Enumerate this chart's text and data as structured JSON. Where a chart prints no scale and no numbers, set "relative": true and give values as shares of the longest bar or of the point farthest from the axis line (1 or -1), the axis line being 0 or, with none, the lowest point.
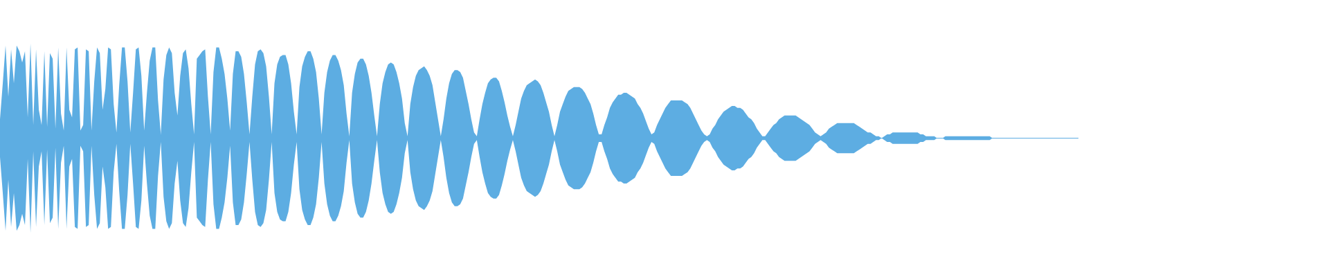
{
  "chart_data": {
    "type": "area",
    "relative": true,
    "ref_lines": [
      {
        "axis": "y",
        "value": 0,
        "color": "#5dade2"
      }
    ],
    "categories": [
      null,
      null,
      null,
      null,
      null,
      null,
      null,
      null,
      null,
      null,
      null,
      null,
      null,
      null,
      null,
      null,
      null,
      null,
      null,
      null,
      null,
      null,
      null,
      null,
      null,
      null,
      null,
      null,
      null,
      null,
      null,
      null,
      null,
      null,
      null,
      null,
      null,
      null,
      null,
      null,
      null,
      null,
      null,
      null,
      null,
      null,
      null,
      null,
      null,
      null,
      null,
      null,
      null,
      null,
      null,
      null,
      null,
      null,
      null,
      null,
      null,
      null,
      null,
      null,
      null,
      null,
      null,
      null,
      null,
      null,
      null,
      null,
      null,
      null,
      null,
      null,
      null,
      null,
      null,
      null,
      null,
      null,
      null,
      null,
      null,
      null,
      null,
      null,
      null,
      null,
      null,
      null,
      null,
      null,
      null,
      null,
      null,
      null,
      null,
      null,
      null,
      null,
      null,
      null,
      null,
      null,
      null,
      null,
      null,
      null,
      null,
      null,
      null,
      null,
      null,
      null,
      null,
      null,
      null,
      null,
      null,
      null,
      null,
      null,
      null,
      null,
      null,
      null,
      null,
      null,
      null,
      null,
      null,
      null,
      null,
      null,
      null,
      null,
      null,
      null,
      null,
      null,
      null,
      null,
      null,
      null,
      null,
      null,
      null,
      null,
      null,
      null,
      null,
      null,
      null,
      null,
      null,
      null,
      null,
      null,
      null,
      null,
      null,
      null,
      null,
      null,
      null,
      null,
      null,
      null,
      null,
      null,
      null,
      null,
      null,
      null,
      null,
      null,
      null,
      null,
      null,
      null,
      null,
      null,
      null,
      null,
      null,
      null,
      null,
      null,
      null,
      null,
      null,
      null,
      null,
      null,
      null,
      null,
      null,
      null,
      null,
      null,
      null,
      null,
      null,
      null,
      null,
      null,
      null,
      null,
      null,
      null,
      null,
      null,
      null,
      null,
      null,
      null,
      null,
      null,
      null,
      null,
      null,
      null,
      null,
      null,
      null,
      null,
      null,
      null,
      null,
      null,
      null,
      null,
      null,
      null,
      null,
      null,
      null,
      null,
      null,
      null,
      null,
      null,
      null,
      null,
      null,
      null,
      null,
      null,
      null,
      null,
      null,
      null,
      null,
      null,
      null,
      null,
      null,
      null,
      null,
      null,
      null,
      null,
      null,
      null,
      null,
      null,
      null,
      null,
      null,
      null,
      null,
      null,
      null,
      null,
      null,
      null,
      null,
      null,
      null,
      null,
      null,
      null,
      null,
      null,
      null,
      null,
      null,
      null,
      null,
      null,
      null,
      null,
      null,
      null,
      null,
      null,
      null,
      null,
      null,
      null,
      null,
      null,
      null,
      null,
      null,
      null,
      null,
      null,
      null,
      null,
      null,
      null,
      null,
      null,
      null,
      null,
      null,
      null,
      null,
      null,
      null,
      null,
      null,
      null,
      null,
      null,
      null,
      null,
      null,
      null,
      null,
      null,
      null,
      null,
      null,
      null,
      null,
      null,
      null,
      null,
      null,
      null,
      null,
      null,
      null,
      null,
      null,
      null,
      null,
      null,
      null,
      null,
      null,
      null,
      null,
      null,
      null,
      null,
      null,
      null,
      null,
      null,
      null,
      null,
      null,
      null,
      null,
      null,
      null,
      null,
      null,
      null,
      null,
      null,
      null,
      null,
      null,
      null,
      null,
      null,
      null,
      null,
      null,
      null,
      null,
      null,
      null,
      null
    ],
    "series": [
      {
        "color": "#5dade2",
        "values": [
          0.2,
          0.58,
          0.98,
          0.44,
          0.94,
          0.58,
          0.98,
          0.92,
          0.8,
          0.92,
          0.22,
          1,
          0.14,
          0.94,
          0.3,
          0.14,
          0.92,
          0.12,
          0.9,
          0.84,
          0.1,
          0.96,
          0.26,
          0.08,
          0.96,
          0.3,
          0.22,
          0.94,
          0.96,
          0.08,
          0.14,
          0.94,
          0.92,
          0.08,
          0.6,
          0.96,
          0.9,
          0.3,
          0.52,
          0.96,
          0.94,
          0.36,
          0.06,
          0.56,
          0.96,
          0.96,
          0.6,
          0.06,
          0.48,
          0.94,
          0.96,
          0.66,
          0.08,
          0.48,
          0.82,
          0.96,
          0.96,
          0.4,
          0.04,
          0.62,
          0.88,
          0.96,
          0.9,
          0.48,
          0.24,
          0.66,
          0.9,
          0.94,
          0.74,
          0.36,
          0.04,
          0.84,
          0.88,
          0.92,
          0.94,
          0.44,
          0.04,
          0.7,
          0.96,
          0.96,
          0.84,
          0.68,
          0.42,
          0.08,
          0.68,
          0.92,
          0.92,
          0.86,
          0.68,
          0.38,
          0.04,
          0.44,
          0.78,
          0.92,
          0.94,
          0.9,
          0.76,
          0.44,
          0.04,
          0.58,
          0.78,
          0.86,
          0.88,
          0.88,
          0.78,
          0.58,
          0.28,
          0.04,
          0.54,
          0.76,
          0.86,
          0.92,
          0.92,
          0.84,
          0.7,
          0.42,
          0.04,
          0.48,
          0.7,
          0.82,
          0.88,
          0.88,
          0.82,
          0.72,
          0.56,
          0.26,
          0.02,
          0.48,
          0.68,
          0.8,
          0.84,
          0.84,
          0.78,
          0.66,
          0.48,
          0.24,
          0.02,
          0.36,
          0.58,
          0.7,
          0.78,
          0.8,
          0.78,
          0.7,
          0.58,
          0.42,
          0.16,
          0.02,
          0.36,
          0.54,
          0.66,
          0.72,
          0.74,
          0.76,
          0.72,
          0.66,
          0.56,
          0.38,
          0.2,
          0.02,
          0.2,
          0.42,
          0.58,
          0.68,
          0.72,
          0.72,
          0.7,
          0.64,
          0.5,
          0.36,
          0.2,
          0.06,
          0.02,
          0.2,
          0.36,
          0.48,
          0.58,
          0.62,
          0.64,
          0.64,
          0.6,
          0.5,
          0.38,
          0.24,
          0.12,
          0.02,
          0.14,
          0.28,
          0.42,
          0.5,
          0.56,
          0.58,
          0.6,
          0.62,
          0.6,
          0.56,
          0.48,
          0.38,
          0.28,
          0.14,
          0.02,
          0.14,
          0.28,
          0.36,
          0.44,
          0.5,
          0.52,
          0.54,
          0.54,
          0.54,
          0.52,
          0.48,
          0.42,
          0.36,
          0.26,
          0.14,
          0.04,
          0.04,
          0.14,
          0.22,
          0.32,
          0.38,
          0.42,
          0.46,
          0.46,
          0.48,
          0.48,
          0.46,
          0.44,
          0.42,
          0.36,
          0.32,
          0.26,
          0.18,
          0.1,
          0.04,
          0.06,
          0.14,
          0.2,
          0.26,
          0.32,
          0.36,
          0.4,
          0.4,
          0.4,
          0.4,
          0.4,
          0.38,
          0.36,
          0.32,
          0.26,
          0.2,
          0.14,
          0.08,
          0.04,
          0.02,
          0.04,
          0.1,
          0.14,
          0.2,
          0.24,
          0.28,
          0.3,
          0.32,
          0.34,
          0.34,
          0.32,
          0.32,
          0.3,
          0.26,
          0.22,
          0.2,
          0.16,
          0.1,
          0.06,
          0.02,
          0.02,
          0.06,
          0.1,
          0.14,
          0.16,
          0.2,
          0.22,
          0.24,
          0.24,
          0.24,
          0.24,
          0.24,
          0.22,
          0.2,
          0.18,
          0.16,
          0.14,
          0.1,
          0.06,
          0.04,
          0.02,
          0.04,
          0.06,
          0.1,
          0.12,
          0.14,
          0.16,
          0.16,
          0.16,
          0.16,
          0.16,
          0.16,
          0.16,
          0.14,
          0.12,
          0.1,
          0.08,
          0.06,
          0.06,
          0.04,
          0.02,
          0.02,
          0,
          0.02,
          0.04,
          0.04,
          0.06,
          0.06,
          0.06,
          0.06,
          0.06,
          0.06,
          0.06,
          0.06,
          0.06,
          0.06,
          0.04,
          0.04,
          0.02,
          0.02,
          0.02,
          0.02,
          0,
          0,
          0,
          0.02,
          0.02,
          0.02,
          0.02,
          0.02,
          0.02,
          0.02,
          0.02,
          0.02,
          0.02,
          0.02,
          0.02,
          0.02,
          0.02,
          0.02,
          0.02,
          0.02,
          0,
          0,
          0,
          0,
          0,
          0,
          0,
          0,
          0,
          0,
          0,
          0,
          0,
          0,
          0,
          0,
          0,
          0,
          0,
          0,
          0,
          0,
          0,
          0,
          0,
          0,
          0,
          0,
          0,
          0,
          0,
          0
        ]
      },
      {
        "color": "#5dade2",
        "values": [
          -0.2,
          -0.58,
          -0.98,
          -0.44,
          -0.94,
          -0.58,
          -0.98,
          -0.92,
          -0.8,
          -0.92,
          -0.22,
          -1,
          -0.14,
          -0.94,
          -0.3,
          -0.14,
          -0.92,
          -0.12,
          -0.9,
          -0.84,
          -0.1,
          -0.96,
          -0.26,
          -0.08,
          -0.96,
          -0.3,
          -0.22,
          -0.94,
          -0.96,
          -0.08,
          -0.14,
          -0.94,
          -0.92,
          -0.08,
          -0.6,
          -0.96,
          -0.9,
          -0.3,
          -0.52,
          -0.96,
          -0.94,
          -0.36,
          -0.06,
          -0.56,
          -0.96,
          -0.96,
          -0.6,
          -0.06,
          -0.48,
          -0.94,
          -0.96,
          -0.66,
          -0.08,
          -0.48,
          -0.82,
          -0.96,
          -0.96,
          -0.4,
          -0.04,
          -0.62,
          -0.88,
          -0.96,
          -0.9,
          -0.48,
          -0.24,
          -0.66,
          -0.9,
          -0.94,
          -0.74,
          -0.36,
          -0.04,
          -0.84,
          -0.88,
          -0.92,
          -0.94,
          -0.44,
          -0.04,
          -0.7,
          -0.96,
          -0.96,
          -0.84,
          -0.68,
          -0.42,
          -0.08,
          -0.68,
          -0.92,
          -0.92,
          -0.86,
          -0.68,
          -0.38,
          -0.04,
          -0.44,
          -0.78,
          -0.92,
          -0.94,
          -0.9,
          -0.76,
          -0.44,
          -0.04,
          -0.58,
          -0.78,
          -0.86,
          -0.88,
          -0.88,
          -0.78,
          -0.58,
          -0.28,
          -0.04,
          -0.54,
          -0.76,
          -0.86,
          -0.92,
          -0.92,
          -0.84,
          -0.7,
          -0.42,
          -0.04,
          -0.48,
          -0.7,
          -0.82,
          -0.88,
          -0.88,
          -0.82,
          -0.72,
          -0.56,
          -0.26,
          -0.02,
          -0.48,
          -0.68,
          -0.8,
          -0.84,
          -0.84,
          -0.78,
          -0.66,
          -0.48,
          -0.24,
          -0.02,
          -0.36,
          -0.58,
          -0.7,
          -0.78,
          -0.8,
          -0.78,
          -0.7,
          -0.58,
          -0.42,
          -0.16,
          -0.02,
          -0.36,
          -0.54,
          -0.66,
          -0.72,
          -0.74,
          -0.76,
          -0.72,
          -0.66,
          -0.56,
          -0.38,
          -0.2,
          -0.02,
          -0.2,
          -0.42,
          -0.58,
          -0.68,
          -0.72,
          -0.72,
          -0.7,
          -0.64,
          -0.5,
          -0.36,
          -0.2,
          -0.06,
          -0.02,
          -0.2,
          -0.36,
          -0.48,
          -0.58,
          -0.62,
          -0.64,
          -0.64,
          -0.6,
          -0.5,
          -0.38,
          -0.24,
          -0.12,
          -0.02,
          -0.14,
          -0.28,
          -0.42,
          -0.5,
          -0.56,
          -0.58,
          -0.6,
          -0.62,
          -0.6,
          -0.56,
          -0.48,
          -0.38,
          -0.28,
          -0.14,
          -0.02,
          -0.14,
          -0.28,
          -0.36,
          -0.44,
          -0.5,
          -0.52,
          -0.54,
          -0.54,
          -0.54,
          -0.52,
          -0.48,
          -0.42,
          -0.36,
          -0.26,
          -0.14,
          -0.04,
          -0.04,
          -0.14,
          -0.22,
          -0.32,
          -0.38,
          -0.42,
          -0.46,
          -0.46,
          -0.48,
          -0.48,
          -0.46,
          -0.44,
          -0.42,
          -0.36,
          -0.32,
          -0.26,
          -0.18,
          -0.1,
          -0.04,
          -0.06,
          -0.14,
          -0.2,
          -0.26,
          -0.32,
          -0.36,
          -0.4,
          -0.4,
          -0.4,
          -0.4,
          -0.4,
          -0.38,
          -0.36,
          -0.32,
          -0.26,
          -0.2,
          -0.14,
          -0.08,
          -0.04,
          -0.02,
          -0.04,
          -0.1,
          -0.14,
          -0.2,
          -0.24,
          -0.28,
          -0.3,
          -0.32,
          -0.34,
          -0.34,
          -0.32,
          -0.32,
          -0.3,
          -0.26,
          -0.22,
          -0.2,
          -0.16,
          -0.1,
          -0.06,
          -0.02,
          -0.02,
          -0.06,
          -0.1,
          -0.14,
          -0.16,
          -0.2,
          -0.22,
          -0.24,
          -0.24,
          -0.24,
          -0.24,
          -0.24,
          -0.22,
          -0.2,
          -0.18,
          -0.16,
          -0.14,
          -0.1,
          -0.06,
          -0.04,
          -0.02,
          -0.04,
          -0.06,
          -0.1,
          -0.12,
          -0.14,
          -0.16,
          -0.16,
          -0.16,
          -0.16,
          -0.16,
          -0.16,
          -0.16,
          -0.14,
          -0.12,
          -0.1,
          -0.08,
          -0.06,
          -0.06,
          -0.04,
          -0.02,
          -0.02,
          0,
          -0.02,
          -0.04,
          -0.04,
          -0.06,
          -0.06,
          -0.06,
          -0.06,
          -0.06,
          -0.06,
          -0.06,
          -0.06,
          -0.06,
          -0.06,
          -0.04,
          -0.04,
          -0.02,
          -0.02,
          -0.02,
          -0.02,
          0,
          0,
          0,
          -0.02,
          -0.02,
          -0.02,
          -0.02,
          -0.02,
          -0.02,
          -0.02,
          -0.02,
          -0.02,
          -0.02,
          -0.02,
          -0.02,
          -0.02,
          -0.02,
          -0.02,
          -0.02,
          -0.02,
          0,
          0,
          0,
          0,
          0,
          0,
          0,
          0,
          0,
          0,
          0,
          0,
          0,
          0,
          0,
          0,
          0,
          0,
          0,
          0,
          0,
          0,
          0,
          0,
          0,
          0,
          0,
          0,
          0,
          0,
          0,
          0
        ]
      }
    ]
  }
}
